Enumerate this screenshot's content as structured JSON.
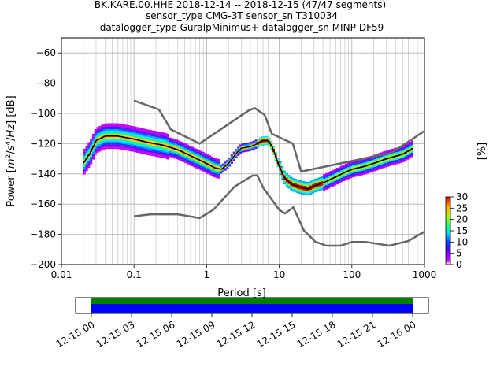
{
  "chart_data": [
    {
      "type": "heatmap",
      "title_lines": [
        "BK.KARE.00.HHE   2018-12-14 -- 2018-12-15  (47/47 segments)",
        "sensor_type CMG-3T sensor_sn T310034",
        "datalogger_type GuralpMinimus+ datalogger_sn MINP-DF59"
      ],
      "xlabel": "Period [s]",
      "ylabel_parts": [
        "Power [",
        "m",
        "2",
        "/",
        "s",
        "4",
        "/",
        "Hz",
        "] [dB]"
      ],
      "x_scale": "log",
      "xlim": [
        0.01,
        1000
      ],
      "ylim": [
        -200,
        -50
      ],
      "x_ticks": [
        {
          "value": 0.01,
          "label": "0.01"
        },
        {
          "value": 0.1,
          "label": "0.1"
        },
        {
          "value": 1,
          "label": "1"
        },
        {
          "value": 10,
          "label": "10"
        },
        {
          "value": 100,
          "label": "100"
        },
        {
          "value": 1000,
          "label": "1000"
        }
      ],
      "y_ticks": [
        {
          "value": -60,
          "label": "−60"
        },
        {
          "value": -80,
          "label": "−80"
        },
        {
          "value": -100,
          "label": "−100"
        },
        {
          "value": -120,
          "label": "−120"
        },
        {
          "value": -140,
          "label": "−140"
        },
        {
          "value": -160,
          "label": "−160"
        },
        {
          "value": -180,
          "label": "−180"
        },
        {
          "value": -200,
          "label": "−200"
        }
      ],
      "grid": true,
      "colorbar": {
        "label": "[%]",
        "range": [
          0,
          30
        ],
        "ticks": [
          {
            "value": 0,
            "label": "0"
          },
          {
            "value": 5,
            "label": "5"
          },
          {
            "value": 10,
            "label": "10"
          },
          {
            "value": 15,
            "label": "15"
          },
          {
            "value": 20,
            "label": "20"
          },
          {
            "value": 25,
            "label": "25"
          },
          {
            "value": 30,
            "label": "30"
          }
        ]
      },
      "series": [
        {
          "role": "noise-model-high",
          "color": "#666666",
          "points": [
            [
              0.1,
              -91.5
            ],
            [
              0.22,
              -97.4
            ],
            [
              0.32,
              -110.5
            ],
            [
              0.8,
              -120
            ],
            [
              3.8,
              -98
            ],
            [
              4.6,
              -96.5
            ],
            [
              6.3,
              -101
            ],
            [
              7.9,
              -113.5
            ],
            [
              15.4,
              -120
            ],
            [
              20,
              -138.5
            ],
            [
              354.8,
              -126
            ],
            [
              1000,
              -111.6
            ]
          ]
        },
        {
          "role": "noise-model-low",
          "color": "#666666",
          "points": [
            [
              0.1,
              -168
            ],
            [
              0.17,
              -166.7
            ],
            [
              0.4,
              -166.7
            ],
            [
              0.8,
              -169.2
            ],
            [
              1.24,
              -163.7
            ],
            [
              2.4,
              -148.6
            ],
            [
              4.3,
              -141.1
            ],
            [
              5,
              -141.1
            ],
            [
              6,
              -149
            ],
            [
              10,
              -163.8
            ],
            [
              12,
              -166.2
            ],
            [
              15.6,
              -162.1
            ],
            [
              21.9,
              -177.5
            ],
            [
              31.6,
              -185
            ],
            [
              45,
              -187.5
            ],
            [
              70,
              -187.5
            ],
            [
              101,
              -185
            ],
            [
              154,
              -185
            ],
            [
              328,
              -187.5
            ],
            [
              600,
              -184.4
            ],
            [
              1000,
              -178.2
            ]
          ]
        },
        {
          "role": "mean",
          "color": "#000000",
          "points": [
            [
              0.02,
              -133
            ],
            [
              0.025,
              -126
            ],
            [
              0.03,
              -118
            ],
            [
              0.04,
              -115
            ],
            [
              0.06,
              -115
            ],
            [
              0.1,
              -117
            ],
            [
              0.15,
              -119
            ],
            [
              0.25,
              -121
            ],
            [
              0.4,
              -124
            ],
            [
              0.6,
              -128
            ],
            [
              0.9,
              -132
            ],
            [
              1.3,
              -136
            ],
            [
              1.6,
              -137
            ],
            [
              2,
              -133
            ],
            [
              2.5,
              -127
            ],
            [
              3,
              -123
            ],
            [
              4,
              -122
            ],
            [
              5,
              -120
            ],
            [
              6,
              -118
            ],
            [
              7,
              -118
            ],
            [
              8,
              -122
            ],
            [
              10,
              -135
            ],
            [
              12,
              -143
            ],
            [
              15,
              -147
            ],
            [
              20,
              -149
            ],
            [
              25,
              -150
            ],
            [
              30,
              -148
            ],
            [
              40,
              -146
            ],
            [
              60,
              -142
            ],
            [
              80,
              -139
            ],
            [
              100,
              -137
            ],
            [
              150,
              -135
            ],
            [
              200,
              -133
            ],
            [
              300,
              -130
            ],
            [
              500,
              -127
            ],
            [
              700,
              -123
            ]
          ]
        }
      ]
    },
    {
      "type": "timeline",
      "x_ticks": [
        "12-15 00",
        "12-15 03",
        "12-15 06",
        "12-15 09",
        "12-15 12",
        "12-15 15",
        "12-15 18",
        "12-15 21",
        "12-16 00"
      ],
      "coverage_color": "#0000ff",
      "gap_check_color": "#008000",
      "coverage_hours": [
        0,
        24
      ]
    }
  ]
}
